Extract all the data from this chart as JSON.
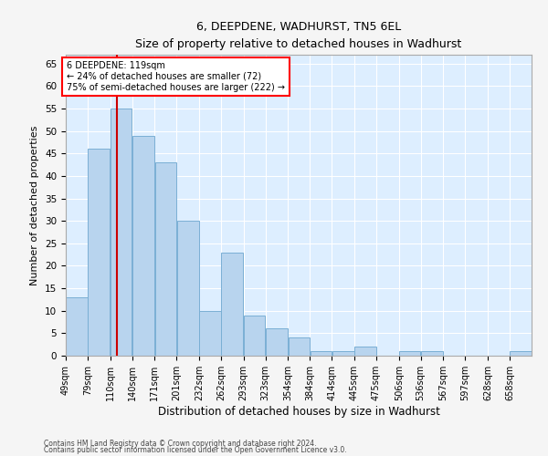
{
  "title": "6, DEEPDENE, WADHURST, TN5 6EL",
  "subtitle": "Size of property relative to detached houses in Wadhurst",
  "xlabel": "Distribution of detached houses by size in Wadhurst",
  "ylabel": "Number of detached properties",
  "bar_color": "#b8d4ee",
  "bar_edge_color": "#7aafd4",
  "bg_color": "#ddeeff",
  "grid_color": "#ffffff",
  "fig_bg_color": "#f5f5f5",
  "redline_color": "#cc0000",
  "redline_x": 119,
  "annotation_line1": "6 DEEPDENE: 119sqm",
  "annotation_line2": "← 24% of detached houses are smaller (72)",
  "annotation_line3": "75% of semi-detached houses are larger (222) →",
  "bin_edges": [
    49,
    79,
    110,
    140,
    171,
    201,
    232,
    262,
    293,
    323,
    354,
    384,
    414,
    445,
    475,
    506,
    536,
    567,
    597,
    628,
    658,
    688
  ],
  "values": [
    13,
    46,
    55,
    49,
    43,
    30,
    10,
    23,
    9,
    6,
    4,
    1,
    1,
    2,
    0,
    1,
    1,
    0,
    0,
    0,
    1
  ],
  "ylim": [
    0,
    67
  ],
  "yticks": [
    0,
    5,
    10,
    15,
    20,
    25,
    30,
    35,
    40,
    45,
    50,
    55,
    60,
    65
  ],
  "footer1": "Contains HM Land Registry data © Crown copyright and database right 2024.",
  "footer2": "Contains public sector information licensed under the Open Government Licence v3.0."
}
